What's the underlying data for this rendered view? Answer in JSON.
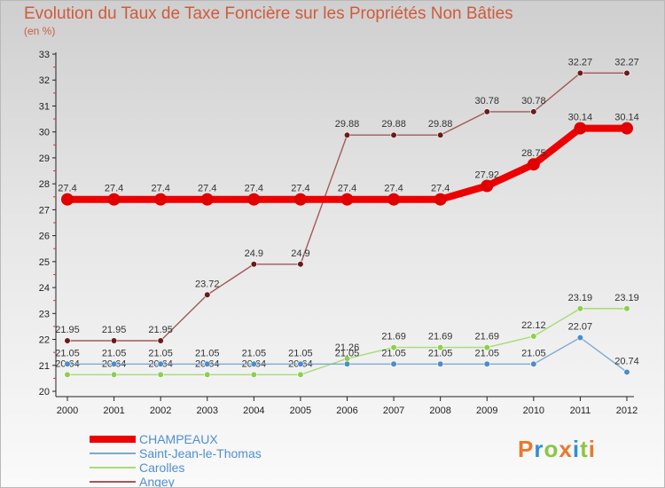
{
  "header": {
    "title": "Evolution du Taux de Taxe Foncière sur les Propriétés Non Bâties",
    "unit": "(en %)"
  },
  "brand": {
    "text": "Proxiti",
    "colors": [
      "#e8792b",
      "#2f8fd6",
      "#8cc63f",
      "#e8792b",
      "#2f8fd6",
      "#8cc63f",
      "#e8792b"
    ]
  },
  "chart_data": {
    "type": "line",
    "title": "Evolution du Taux de Taxe Foncière sur les Propriétés Non Bâties",
    "ylabel": "(en %)",
    "xlabel": "",
    "categories": [
      "2000",
      "2001",
      "2002",
      "2003",
      "2004",
      "2005",
      "2006",
      "2007",
      "2008",
      "2009",
      "2010",
      "2011",
      "2012"
    ],
    "ylim": [
      20,
      33
    ],
    "yticks": [
      20,
      21,
      22,
      23,
      24,
      25,
      26,
      27,
      28,
      29,
      30,
      31,
      32,
      33
    ],
    "grid": false,
    "legend_position": "bottom-left",
    "series": [
      {
        "name": "CHAMPEAUX",
        "color": "#ee0000",
        "marker": "#e00000",
        "thick": true,
        "values": [
          27.4,
          27.4,
          27.4,
          27.4,
          27.4,
          27.4,
          27.4,
          27.4,
          27.4,
          27.92,
          28.75,
          30.14,
          30.14
        ],
        "labels": [
          "27.4",
          "27.4",
          "27.4",
          "27.4",
          "27.4",
          "27.4",
          "27.4",
          "27.4",
          "27.4",
          "27.92",
          "28.75",
          "30.14",
          "30.14"
        ]
      },
      {
        "name": "Saint-Jean-le-Thomas",
        "color": "#7fa9cf",
        "marker": "#4d8cc8",
        "thick": false,
        "values": [
          21.05,
          21.05,
          21.05,
          21.05,
          21.05,
          21.05,
          21.05,
          21.05,
          21.05,
          21.05,
          21.05,
          22.07,
          20.74
        ],
        "labels": [
          "21.05",
          "21.05",
          "21.05",
          "21.05",
          "21.05",
          "21.05",
          "21.05",
          "21.05",
          "21.05",
          "21.05",
          "21.05",
          "22.07",
          "20.74"
        ]
      },
      {
        "name": "Carolles",
        "color": "#a6dc74",
        "marker": "#8ccf4d",
        "thick": false,
        "values": [
          20.64,
          20.64,
          20.64,
          20.64,
          20.64,
          20.64,
          21.26,
          21.69,
          21.69,
          21.69,
          22.12,
          23.19,
          23.19
        ],
        "labels": [
          "20.64",
          "20.64",
          "20.64",
          "20.64",
          "20.64",
          "20.64",
          "21.26",
          "21.69",
          "21.69",
          "21.69",
          "22.12",
          "23.19",
          "23.19"
        ]
      },
      {
        "name": "Angey",
        "color": "#a05a5a",
        "marker": "#6a1a1a",
        "thick": false,
        "values": [
          21.95,
          21.95,
          21.95,
          23.72,
          24.9,
          24.9,
          29.88,
          29.88,
          29.88,
          30.78,
          30.78,
          32.27,
          32.27
        ],
        "labels": [
          "21.95",
          "21.95",
          "21.95",
          "23.72",
          "24.9",
          "24.9",
          "29.88",
          "29.88",
          "29.88",
          "30.78",
          "30.78",
          "32.27",
          "32.27"
        ]
      }
    ]
  }
}
